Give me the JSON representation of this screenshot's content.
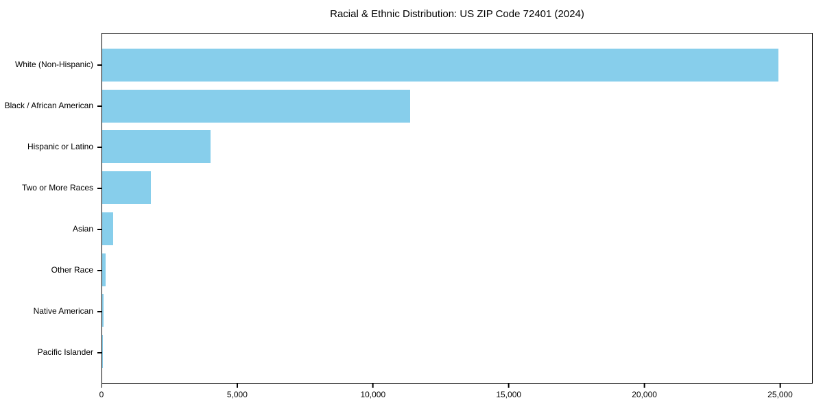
{
  "chart_data": {
    "type": "bar",
    "orientation": "horizontal",
    "title": "Racial & Ethnic Distribution: US ZIP Code 72401 (2024)",
    "categories": [
      "White (Non-Hispanic)",
      "Black / African American",
      "Hispanic or Latino",
      "Two or More Races",
      "Asian",
      "Other Race",
      "Native American",
      "Pacific Islander"
    ],
    "values": [
      24950,
      11360,
      4000,
      1790,
      400,
      125,
      40,
      10
    ],
    "bar_color": "#87CEEB",
    "frame_color": "#000000",
    "background_color": "#ffffff",
    "xlabel": "",
    "ylabel": "",
    "xlim": [
      0,
      26200
    ],
    "x_ticks": [
      0,
      5000,
      10000,
      15000,
      20000,
      25000
    ],
    "x_tick_labels": [
      "0",
      "5,000",
      "10,000",
      "15,000",
      "20,000",
      "25,000"
    ],
    "grid": false,
    "legend": null
  }
}
